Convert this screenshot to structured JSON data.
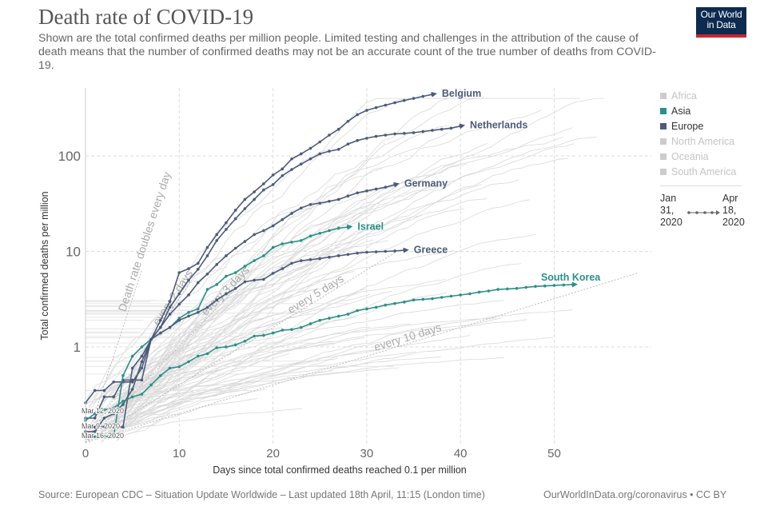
{
  "header": {
    "title": "Death rate of COVID-19",
    "subtitle": "Shown are the total confirmed deaths per million people. Limited testing and challenges in the attribution of the cause of death means that the number of confirmed deaths may not be an accurate count of the true number of deaths from COVID-19.",
    "logo_line1": "Our World",
    "logo_line2": "in Data"
  },
  "legend": {
    "items": [
      {
        "label": "Africa",
        "color": "#cccccc",
        "text_color": "#c4c4c4"
      },
      {
        "label": "Asia",
        "color": "#2a9089",
        "text_color": "#333333"
      },
      {
        "label": "Europe",
        "color": "#4c5b7a",
        "text_color": "#333333"
      },
      {
        "label": "North America",
        "color": "#cccccc",
        "text_color": "#c4c4c4"
      },
      {
        "label": "Oceania",
        "color": "#cccccc",
        "text_color": "#c4c4c4"
      },
      {
        "label": "South America",
        "color": "#cccccc",
        "text_color": "#c4c4c4"
      }
    ]
  },
  "timeline": {
    "start_line1": "Jan",
    "start_line2": "31,",
    "start_line3": "2020",
    "end_line1": "Apr",
    "end_line2": "18,",
    "end_line3": "2020"
  },
  "footer": {
    "source": "Source: European CDC – Situation Update Worldwide – Last updated 18th April, 11:15 (London time)",
    "credit": "OurWorldInData.org/coronavirus • CC BY"
  },
  "colors": {
    "europe": "#4c5b7a",
    "asia": "#2a9089",
    "other": "#d9d9d9",
    "grid": "#dddddd",
    "reference": "#bbbbbb"
  },
  "chart_data": {
    "type": "line",
    "title": "Death rate of COVID-19",
    "xlabel": "Days since total confirmed deaths reached 0.1 per million",
    "ylabel": "Total confirmed deaths per million",
    "xscale": "linear",
    "yscale": "log",
    "xlim": [
      0,
      59
    ],
    "ylim": [
      0.1,
      450
    ],
    "x_ticks": [
      0,
      10,
      20,
      30,
      40,
      50
    ],
    "y_ticks": [
      1,
      10,
      100
    ],
    "y_tick_labels": [
      "1",
      "10",
      "100"
    ],
    "grid": true,
    "legend_position": "right",
    "reference_lines": [
      {
        "label": "Death rate doubles every day",
        "doubling_days": 1
      },
      {
        "label": "every 2 days",
        "doubling_days": 2
      },
      {
        "label": "every 3 days",
        "doubling_days": 3
      },
      {
        "label": "every 5 days",
        "doubling_days": 5
      },
      {
        "label": "every 10 days",
        "doubling_days": 10
      }
    ],
    "start_annotations": [
      {
        "label": "Mar 12, 2020",
        "value": 0.21
      },
      {
        "label": "Mar 9, 2020",
        "value": 0.145
      },
      {
        "label": "Mar 16, 2020",
        "value": 0.115
      }
    ],
    "series": [
      {
        "name": "Belgium",
        "region": "Europe",
        "x": [
          0,
          1,
          2,
          3,
          4,
          5,
          6,
          7,
          8,
          9,
          10,
          11,
          12,
          13,
          14,
          15,
          16,
          17,
          18,
          19,
          20,
          21,
          22,
          23,
          24,
          25,
          26,
          27,
          28,
          29,
          30,
          31,
          32,
          33,
          34,
          35,
          36,
          37
        ],
        "y": [
          0.26,
          0.35,
          0.35,
          0.43,
          0.43,
          0.43,
          0.6,
          1.2,
          1.9,
          3.0,
          6.0,
          6.6,
          7.5,
          11,
          15,
          20,
          27,
          35,
          42,
          51,
          63,
          73,
          93,
          105,
          120,
          140,
          165,
          190,
          230,
          270,
          300,
          320,
          340,
          360,
          380,
          400,
          420,
          440
        ]
      },
      {
        "name": "Netherlands",
        "region": "Europe",
        "x": [
          0,
          1,
          2,
          3,
          4,
          5,
          6,
          7,
          8,
          9,
          10,
          11,
          12,
          13,
          14,
          15,
          16,
          17,
          18,
          19,
          20,
          21,
          22,
          23,
          24,
          25,
          26,
          27,
          28,
          29,
          30,
          31,
          32,
          33,
          34,
          35,
          36,
          37,
          38,
          39,
          40
        ],
        "y": [
          0.18,
          0.18,
          0.3,
          0.3,
          0.45,
          0.45,
          0.45,
          1.2,
          1.6,
          2.6,
          3.6,
          5.0,
          6.5,
          9.0,
          13,
          17,
          22,
          28,
          35,
          44,
          50,
          62,
          72,
          82,
          93,
          105,
          112,
          117,
          133,
          145,
          153,
          160,
          165,
          170,
          172,
          175,
          180,
          185,
          190,
          195,
          205
        ]
      },
      {
        "name": "Germany",
        "region": "Europe",
        "x": [
          0,
          1,
          2,
          3,
          4,
          5,
          6,
          7,
          8,
          9,
          10,
          11,
          12,
          13,
          14,
          15,
          16,
          17,
          18,
          19,
          20,
          21,
          22,
          23,
          24,
          25,
          26,
          27,
          28,
          29,
          30,
          31,
          32,
          33
        ],
        "y": [
          0.13,
          0.13,
          0.18,
          0.2,
          0.25,
          0.36,
          0.7,
          1.2,
          1.6,
          2.2,
          2.8,
          3.5,
          4.7,
          5.8,
          7.3,
          9.0,
          10.8,
          12.7,
          15,
          16.5,
          18.5,
          21.5,
          25,
          28.5,
          31,
          32,
          33.5,
          35,
          38,
          41,
          43,
          45,
          47,
          50
        ]
      },
      {
        "name": "Israel",
        "region": "Asia",
        "x": [
          0,
          1,
          2,
          3,
          4,
          5,
          6,
          7,
          8,
          9,
          10,
          11,
          12,
          13,
          14,
          15,
          16,
          17,
          18,
          19,
          20,
          21,
          22,
          23,
          24,
          25,
          26,
          27,
          28
        ],
        "y": [
          0.115,
          0.115,
          0.115,
          0.115,
          0.5,
          0.8,
          1.0,
          1.2,
          1.4,
          1.6,
          2.0,
          2.3,
          2.5,
          4.0,
          4.5,
          5.5,
          6.0,
          7.0,
          8.0,
          9.0,
          11,
          12,
          12.5,
          13,
          14.5,
          15.5,
          16.5,
          17.5,
          18
        ]
      },
      {
        "name": "Greece",
        "region": "Europe",
        "x": [
          0,
          1,
          2,
          3,
          4,
          5,
          6,
          7,
          8,
          9,
          10,
          11,
          12,
          13,
          14,
          15,
          16,
          17,
          18,
          19,
          20,
          21,
          22,
          23,
          24,
          25,
          26,
          27,
          28,
          29,
          30,
          31,
          32,
          33,
          34
        ],
        "y": [
          0.145,
          0.145,
          0.145,
          0.145,
          0.145,
          0.6,
          0.8,
          1.2,
          1.4,
          1.6,
          1.9,
          2.1,
          2.3,
          2.6,
          3.1,
          3.6,
          4.1,
          4.8,
          5.0,
          5.1,
          5.9,
          6.6,
          7.5,
          8.0,
          8.2,
          8.4,
          8.7,
          9.0,
          9.3,
          9.6,
          9.8,
          9.9,
          10.0,
          10.1,
          10.3
        ]
      },
      {
        "name": "South Korea",
        "region": "Asia",
        "x": [
          0,
          1,
          2,
          3,
          4,
          5,
          6,
          7,
          8,
          9,
          10,
          11,
          12,
          13,
          14,
          15,
          16,
          17,
          18,
          19,
          20,
          21,
          22,
          23,
          24,
          25,
          26,
          27,
          28,
          29,
          30,
          31,
          32,
          33,
          34,
          35,
          36,
          37,
          38,
          39,
          40,
          41,
          42,
          43,
          44,
          45,
          46,
          47,
          48,
          49,
          50,
          51,
          52
        ],
        "y": [
          0.17,
          0.2,
          0.22,
          0.23,
          0.27,
          0.3,
          0.32,
          0.4,
          0.5,
          0.6,
          0.62,
          0.7,
          0.8,
          0.85,
          0.98,
          1.0,
          1.05,
          1.15,
          1.3,
          1.32,
          1.4,
          1.5,
          1.52,
          1.6,
          1.75,
          1.9,
          2.0,
          2.1,
          2.2,
          2.4,
          2.5,
          2.6,
          2.75,
          2.85,
          2.95,
          3.1,
          3.15,
          3.2,
          3.3,
          3.4,
          3.5,
          3.6,
          3.75,
          3.85,
          4.0,
          4.05,
          4.1,
          4.2,
          4.3,
          4.35,
          4.4,
          4.45,
          4.5
        ]
      }
    ]
  }
}
